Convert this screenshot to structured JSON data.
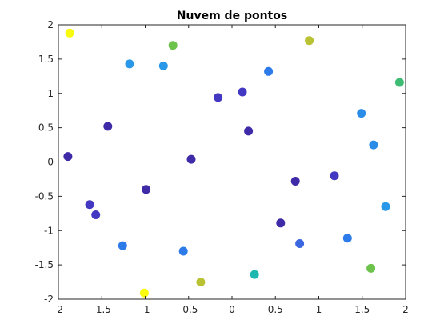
{
  "chart_data": {
    "type": "scatter",
    "title": "Nuvem de pontos",
    "xlabel": "",
    "ylabel": "",
    "xlim": [
      -2,
      2
    ],
    "ylim": [
      -2,
      2
    ],
    "x_ticks": [
      -2,
      -1.5,
      -1,
      -0.5,
      0,
      0.5,
      1,
      1.5,
      2
    ],
    "y_ticks": [
      -2,
      -1.5,
      -1,
      -0.5,
      0,
      0.5,
      1,
      1.5,
      2
    ],
    "x_tick_labels": [
      "-2",
      "-1.5",
      "-1",
      "-0.5",
      "0",
      "0.5",
      "1",
      "1.5",
      "2"
    ],
    "y_tick_labels": [
      "-2",
      "-1.5",
      "-1",
      "-0.5",
      "0",
      "0.5",
      "1",
      "1.5",
      "2"
    ],
    "grid": false,
    "legend": "none",
    "axis_color": "#262626",
    "points": [
      {
        "x": -1.87,
        "y": 1.88,
        "color": "#f9fb0e"
      },
      {
        "x": -1.18,
        "y": 1.43,
        "color": "#2a98e8"
      },
      {
        "x": -0.79,
        "y": 1.4,
        "color": "#2a98e8"
      },
      {
        "x": -0.68,
        "y": 1.7,
        "color": "#6cc24a"
      },
      {
        "x": 0.89,
        "y": 1.77,
        "color": "#b9c232"
      },
      {
        "x": 1.93,
        "y": 1.16,
        "color": "#3fbc73"
      },
      {
        "x": 0.42,
        "y": 1.32,
        "color": "#2d7be8"
      },
      {
        "x": -0.16,
        "y": 0.94,
        "color": "#4338c2"
      },
      {
        "x": 0.12,
        "y": 1.02,
        "color": "#4338c2"
      },
      {
        "x": 1.49,
        "y": 0.71,
        "color": "#2b8ce8"
      },
      {
        "x": -1.43,
        "y": 0.52,
        "color": "#3f2ba8"
      },
      {
        "x": 0.19,
        "y": 0.45,
        "color": "#3f2ba8"
      },
      {
        "x": 1.63,
        "y": 0.25,
        "color": "#2b8ce8"
      },
      {
        "x": -1.89,
        "y": 0.08,
        "color": "#3f2ba8"
      },
      {
        "x": -0.47,
        "y": 0.04,
        "color": "#3f2ba8"
      },
      {
        "x": 1.18,
        "y": -0.2,
        "color": "#4338c2"
      },
      {
        "x": 0.73,
        "y": -0.28,
        "color": "#3f2ba8"
      },
      {
        "x": -0.99,
        "y": -0.4,
        "color": "#3f2ba8"
      },
      {
        "x": -1.64,
        "y": -0.62,
        "color": "#4338c2"
      },
      {
        "x": -1.57,
        "y": -0.77,
        "color": "#4338c2"
      },
      {
        "x": 1.77,
        "y": -0.65,
        "color": "#2a98e8"
      },
      {
        "x": 0.56,
        "y": -0.89,
        "color": "#3f2ba8"
      },
      {
        "x": 1.33,
        "y": -1.11,
        "color": "#2d7be8"
      },
      {
        "x": 0.78,
        "y": -1.19,
        "color": "#3a66e0"
      },
      {
        "x": -1.26,
        "y": -1.22,
        "color": "#2d7be8"
      },
      {
        "x": -0.56,
        "y": -1.3,
        "color": "#2d7be8"
      },
      {
        "x": 0.26,
        "y": -1.64,
        "color": "#1fb8b0"
      },
      {
        "x": 1.6,
        "y": -1.55,
        "color": "#6cc24a"
      },
      {
        "x": -0.36,
        "y": -1.75,
        "color": "#b9c232"
      },
      {
        "x": -1.01,
        "y": -1.91,
        "color": "#f9fb0e"
      }
    ]
  }
}
